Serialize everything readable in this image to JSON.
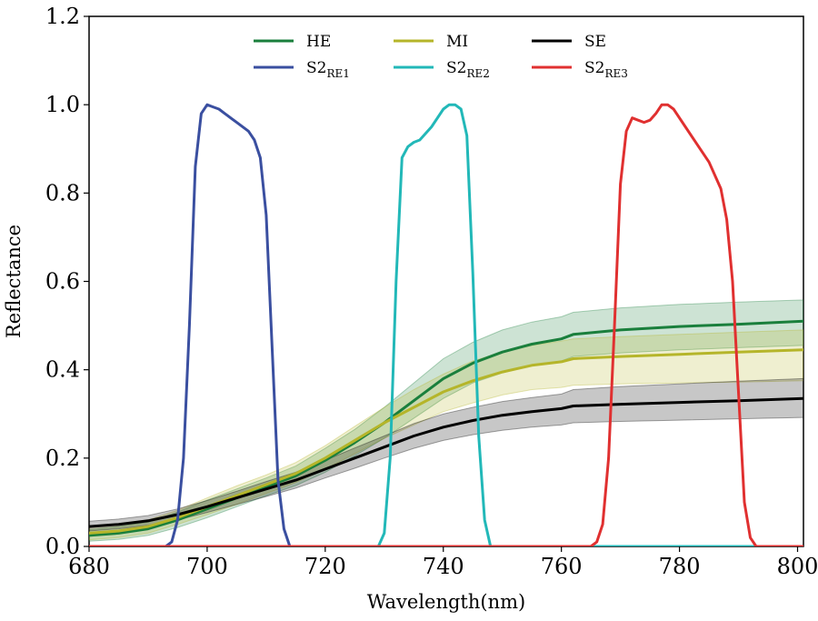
{
  "chart_data": {
    "type": "line",
    "title": "",
    "xlabel": "Wavelength(nm)",
    "ylabel": "Reflectance",
    "xlim": [
      680,
      801
    ],
    "ylim": [
      0.0,
      1.2
    ],
    "xticks": [
      680,
      700,
      720,
      740,
      760,
      780,
      800
    ],
    "yticks": [
      0.0,
      0.2,
      0.4,
      0.6,
      0.8,
      1.0,
      1.2
    ],
    "xtick_labels": [
      "680",
      "700",
      "720",
      "740",
      "760",
      "780",
      "800"
    ],
    "ytick_labels": [
      "0.0",
      "0.2",
      "0.4",
      "0.6",
      "0.8",
      "1.0",
      "1.2"
    ],
    "grid": false,
    "legend_position": "top-center",
    "series": [
      {
        "name": "HE",
        "sub": "",
        "color": "#1a7f3c",
        "kind": "reflectance",
        "x": [
          680,
          685,
          690,
          695,
          700,
          705,
          710,
          715,
          720,
          725,
          730,
          735,
          740,
          745,
          750,
          755,
          760,
          762,
          770,
          780,
          790,
          801
        ],
        "y": [
          0.025,
          0.03,
          0.04,
          0.06,
          0.085,
          0.11,
          0.135,
          0.16,
          0.195,
          0.235,
          0.28,
          0.33,
          0.38,
          0.415,
          0.44,
          0.458,
          0.47,
          0.48,
          0.49,
          0.498,
          0.503,
          0.51
        ],
        "lower": [
          0.012,
          0.016,
          0.025,
          0.043,
          0.065,
          0.09,
          0.115,
          0.138,
          0.168,
          0.205,
          0.245,
          0.29,
          0.335,
          0.37,
          0.393,
          0.41,
          0.42,
          0.43,
          0.438,
          0.445,
          0.45,
          0.455
        ],
        "upper": [
          0.038,
          0.045,
          0.055,
          0.078,
          0.105,
          0.13,
          0.155,
          0.182,
          0.222,
          0.265,
          0.315,
          0.37,
          0.425,
          0.462,
          0.49,
          0.508,
          0.52,
          0.53,
          0.54,
          0.548,
          0.553,
          0.558
        ]
      },
      {
        "name": "MI",
        "sub": "",
        "color": "#b5b52a",
        "kind": "reflectance",
        "x": [
          680,
          685,
          690,
          695,
          700,
          705,
          710,
          715,
          720,
          725,
          730,
          735,
          740,
          745,
          750,
          755,
          760,
          762,
          770,
          780,
          790,
          801
        ],
        "y": [
          0.03,
          0.035,
          0.045,
          0.065,
          0.09,
          0.115,
          0.14,
          0.165,
          0.2,
          0.24,
          0.28,
          0.315,
          0.35,
          0.375,
          0.395,
          0.41,
          0.418,
          0.425,
          0.43,
          0.435,
          0.44,
          0.445
        ],
        "lower": [
          0.015,
          0.02,
          0.03,
          0.05,
          0.072,
          0.095,
          0.12,
          0.145,
          0.175,
          0.21,
          0.245,
          0.275,
          0.305,
          0.325,
          0.343,
          0.355,
          0.36,
          0.365,
          0.368,
          0.37,
          0.372,
          0.375
        ],
        "upper": [
          0.045,
          0.05,
          0.06,
          0.082,
          0.11,
          0.137,
          0.162,
          0.19,
          0.228,
          0.272,
          0.315,
          0.355,
          0.39,
          0.42,
          0.44,
          0.455,
          0.465,
          0.47,
          0.475,
          0.48,
          0.485,
          0.49
        ]
      },
      {
        "name": "SE",
        "sub": "",
        "color": "#000000",
        "kind": "reflectance",
        "x": [
          680,
          685,
          690,
          695,
          700,
          705,
          710,
          715,
          720,
          725,
          730,
          735,
          740,
          745,
          750,
          755,
          760,
          762,
          770,
          780,
          790,
          801
        ],
        "y": [
          0.045,
          0.05,
          0.058,
          0.072,
          0.09,
          0.11,
          0.13,
          0.15,
          0.175,
          0.2,
          0.225,
          0.25,
          0.27,
          0.285,
          0.297,
          0.305,
          0.312,
          0.318,
          0.322,
          0.326,
          0.33,
          0.335
        ],
        "lower": [
          0.035,
          0.04,
          0.048,
          0.06,
          0.077,
          0.095,
          0.113,
          0.132,
          0.155,
          0.177,
          0.2,
          0.222,
          0.24,
          0.253,
          0.263,
          0.27,
          0.275,
          0.28,
          0.283,
          0.286,
          0.289,
          0.292
        ],
        "upper": [
          0.057,
          0.062,
          0.07,
          0.085,
          0.104,
          0.125,
          0.147,
          0.168,
          0.195,
          0.223,
          0.25,
          0.278,
          0.3,
          0.315,
          0.328,
          0.337,
          0.345,
          0.355,
          0.362,
          0.368,
          0.374,
          0.38
        ]
      },
      {
        "name": "S2",
        "sub": "RE1",
        "color": "#3a4fa0",
        "kind": "srf",
        "x": [
          680,
          693,
          694,
          695,
          696,
          697,
          698,
          699,
          700,
          701,
          702,
          703,
          705,
          707,
          708,
          709,
          710,
          711,
          712,
          713,
          714,
          801
        ],
        "y": [
          0,
          0,
          0.01,
          0.06,
          0.2,
          0.5,
          0.86,
          0.98,
          1.0,
          0.995,
          0.99,
          0.98,
          0.96,
          0.94,
          0.92,
          0.88,
          0.75,
          0.45,
          0.15,
          0.04,
          0,
          0
        ]
      },
      {
        "name": "S2",
        "sub": "RE2",
        "color": "#22b8b8",
        "kind": "srf",
        "x": [
          680,
          729,
          730,
          731,
          732,
          733,
          734,
          735,
          736,
          738,
          740,
          741,
          742,
          743,
          744,
          745,
          746,
          747,
          748,
          801
        ],
        "y": [
          0,
          0,
          0.03,
          0.2,
          0.6,
          0.88,
          0.905,
          0.915,
          0.92,
          0.95,
          0.99,
          1.0,
          1.0,
          0.99,
          0.93,
          0.62,
          0.25,
          0.06,
          0,
          0
        ]
      },
      {
        "name": "S2",
        "sub": "RE3",
        "color": "#e03030",
        "kind": "srf",
        "x": [
          680,
          765,
          766,
          767,
          768,
          769,
          770,
          771,
          772,
          773,
          774,
          775,
          776,
          777,
          778,
          779,
          781,
          783,
          785,
          787,
          788,
          789,
          790,
          791,
          792,
          793,
          801
        ],
        "y": [
          0,
          0,
          0.01,
          0.05,
          0.2,
          0.5,
          0.82,
          0.94,
          0.97,
          0.965,
          0.96,
          0.965,
          0.98,
          1.0,
          1.0,
          0.99,
          0.95,
          0.91,
          0.87,
          0.81,
          0.74,
          0.6,
          0.35,
          0.1,
          0.02,
          0,
          0
        ]
      }
    ]
  }
}
